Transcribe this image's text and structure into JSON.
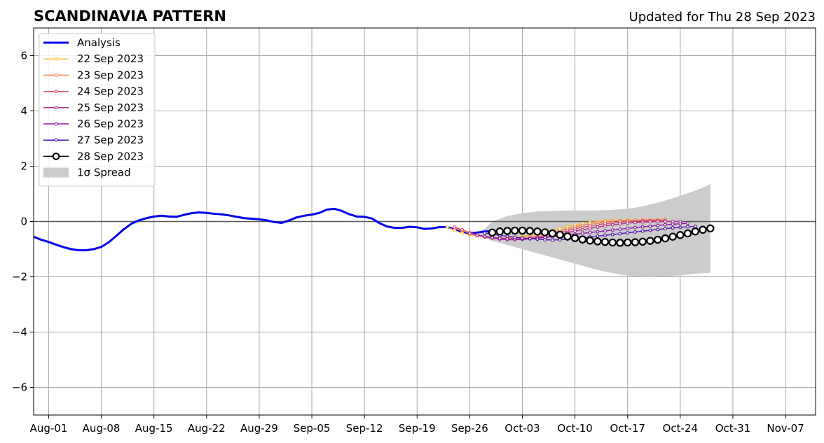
{
  "chart_data": {
    "type": "line",
    "title": "SCANDINAVIA PATTERN",
    "subtitle": "Updated for Thu 28 Sep 2023",
    "xlabel": "",
    "ylabel": "",
    "xlim": [
      "2023-07-30",
      "2023-11-11"
    ],
    "ylim": [
      -7,
      7
    ],
    "grid": true,
    "legend_position": "top-left",
    "x_ticks": [
      "2023-08-01",
      "2023-08-08",
      "2023-08-15",
      "2023-08-22",
      "2023-08-29",
      "2023-09-05",
      "2023-09-12",
      "2023-09-19",
      "2023-09-26",
      "2023-10-03",
      "2023-10-10",
      "2023-10-17",
      "2023-10-24",
      "2023-10-31",
      "2023-11-07"
    ],
    "x_tick_labels": [
      "Aug-01",
      "Aug-08",
      "Aug-15",
      "Aug-22",
      "Aug-29",
      "Sep-05",
      "Sep-12",
      "Sep-19",
      "Sep-26",
      "Oct-03",
      "Oct-10",
      "Oct-17",
      "Oct-24",
      "Oct-31",
      "Nov-07"
    ],
    "y_ticks": [
      -6,
      -4,
      -2,
      0,
      2,
      4,
      6
    ],
    "y_tick_labels": [
      "−6",
      "−4",
      "−2",
      "0",
      "2",
      "4",
      "6"
    ],
    "spread_label": "1σ Spread",
    "analysis": {
      "name": "Analysis",
      "color": "#0000ee",
      "x": [
        "2023-07-30",
        "2023-07-31",
        "2023-08-01",
        "2023-08-02",
        "2023-08-03",
        "2023-08-04",
        "2023-08-05",
        "2023-08-06",
        "2023-08-07",
        "2023-08-08",
        "2023-08-09",
        "2023-08-10",
        "2023-08-11",
        "2023-08-12",
        "2023-08-13",
        "2023-08-14",
        "2023-08-15",
        "2023-08-16",
        "2023-08-17",
        "2023-08-18",
        "2023-08-19",
        "2023-08-20",
        "2023-08-21",
        "2023-08-22",
        "2023-08-23",
        "2023-08-24",
        "2023-08-25",
        "2023-08-26",
        "2023-08-27",
        "2023-08-28",
        "2023-08-29",
        "2023-08-30",
        "2023-08-31",
        "2023-09-01",
        "2023-09-02",
        "2023-09-03",
        "2023-09-04",
        "2023-09-05",
        "2023-09-06",
        "2023-09-07",
        "2023-09-08",
        "2023-09-09",
        "2023-09-10",
        "2023-09-11",
        "2023-09-12",
        "2023-09-13",
        "2023-09-14",
        "2023-09-15",
        "2023-09-16",
        "2023-09-17",
        "2023-09-18",
        "2023-09-19",
        "2023-09-20",
        "2023-09-21",
        "2023-09-22",
        "2023-09-23",
        "2023-09-24",
        "2023-09-25",
        "2023-09-26",
        "2023-09-27",
        "2023-09-28",
        "2023-09-29"
      ],
      "values": [
        -0.55,
        -0.66,
        -0.74,
        -0.84,
        -0.93,
        -1.0,
        -1.04,
        -1.04,
        -1.0,
        -0.92,
        -0.75,
        -0.52,
        -0.28,
        -0.08,
        0.04,
        0.12,
        0.18,
        0.21,
        0.18,
        0.17,
        0.24,
        0.3,
        0.33,
        0.31,
        0.28,
        0.26,
        0.22,
        0.17,
        0.12,
        0.1,
        0.08,
        0.04,
        -0.02,
        -0.05,
        0.04,
        0.15,
        0.21,
        0.25,
        0.31,
        0.43,
        0.46,
        0.38,
        0.26,
        0.18,
        0.17,
        0.11,
        -0.06,
        -0.18,
        -0.23,
        -0.23,
        -0.19,
        -0.21,
        -0.27,
        -0.25,
        -0.2,
        -0.2,
        -0.28,
        -0.38,
        -0.43,
        -0.4,
        -0.36,
        -0.35
      ]
    },
    "series": [
      {
        "name": "22 Sep 2023",
        "color": "#f9b93c",
        "marker": "dot",
        "x_start": "2023-09-23",
        "values": [
          -0.2,
          -0.33,
          -0.42,
          -0.48,
          -0.52,
          -0.56,
          -0.6,
          -0.6,
          -0.6,
          -0.58,
          -0.54,
          -0.5,
          -0.45,
          -0.39,
          -0.32,
          -0.26,
          -0.19,
          -0.13,
          -0.07,
          -0.03,
          0.0,
          0.03,
          0.04,
          0.05,
          0.06,
          0.06,
          0.06,
          0.06,
          0.05
        ]
      },
      {
        "name": "23 Sep 2023",
        "color": "#f2844b",
        "marker": "dot",
        "x_start": "2023-09-24",
        "values": [
          -0.24,
          -0.34,
          -0.42,
          -0.48,
          -0.54,
          -0.57,
          -0.6,
          -0.6,
          -0.6,
          -0.58,
          -0.55,
          -0.51,
          -0.46,
          -0.4,
          -0.34,
          -0.27,
          -0.2,
          -0.14,
          -0.08,
          -0.04,
          -0.01,
          0.01,
          0.03,
          0.04,
          0.05,
          0.06,
          0.07,
          0.07,
          0.07
        ]
      },
      {
        "name": "24 Sep 2023",
        "color": "#dd4a68",
        "marker": "dot",
        "x_start": "2023-09-24",
        "values": [
          -0.2,
          -0.3,
          -0.4,
          -0.49,
          -0.56,
          -0.6,
          -0.63,
          -0.65,
          -0.65,
          -0.63,
          -0.6,
          -0.56,
          -0.51,
          -0.45,
          -0.39,
          -0.33,
          -0.27,
          -0.21,
          -0.16,
          -0.11,
          -0.08,
          -0.05,
          -0.02,
          0.0,
          0.01,
          0.02,
          0.03,
          0.03,
          0.03
        ]
      },
      {
        "name": "25 Sep 2023",
        "color": "#b22c8b",
        "marker": "dot",
        "x_start": "2023-09-26",
        "values": [
          -0.44,
          -0.5,
          -0.55,
          -0.6,
          -0.64,
          -0.66,
          -0.66,
          -0.65,
          -0.63,
          -0.6,
          -0.56,
          -0.51,
          -0.45,
          -0.4,
          -0.35,
          -0.3,
          -0.25,
          -0.2,
          -0.16,
          -0.12,
          -0.09,
          -0.06,
          -0.04,
          -0.02,
          -0.01,
          0.0,
          0.0,
          0.0,
          0.0
        ]
      },
      {
        "name": "26 Sep 2023",
        "color": "#8b13a8",
        "marker": "dot",
        "x_start": "2023-09-27",
        "values": [
          -0.5,
          -0.54,
          -0.58,
          -0.61,
          -0.63,
          -0.63,
          -0.63,
          -0.62,
          -0.6,
          -0.58,
          -0.55,
          -0.52,
          -0.49,
          -0.46,
          -0.43,
          -0.4,
          -0.37,
          -0.34,
          -0.31,
          -0.28,
          -0.25,
          -0.22,
          -0.19,
          -0.17,
          -0.14,
          -0.12,
          -0.1,
          -0.08,
          -0.07
        ]
      },
      {
        "name": "27 Sep 2023",
        "color": "#4f0da8",
        "marker": "dot",
        "x_start": "2023-09-28",
        "values": [
          -0.42,
          -0.46,
          -0.5,
          -0.54,
          -0.57,
          -0.6,
          -0.62,
          -0.64,
          -0.66,
          -0.67,
          -0.66,
          -0.64,
          -0.62,
          -0.59,
          -0.56,
          -0.53,
          -0.5,
          -0.47,
          -0.44,
          -0.41,
          -0.38,
          -0.35,
          -0.32,
          -0.29,
          -0.26,
          -0.23,
          -0.21,
          -0.19,
          -0.18
        ]
      },
      {
        "name": "28 Sep 2023",
        "color": "#000000",
        "marker": "open-circle",
        "x_start": "2023-09-29",
        "values": [
          -0.4,
          -0.36,
          -0.34,
          -0.33,
          -0.33,
          -0.34,
          -0.36,
          -0.39,
          -0.43,
          -0.48,
          -0.54,
          -0.6,
          -0.65,
          -0.69,
          -0.72,
          -0.74,
          -0.76,
          -0.77,
          -0.76,
          -0.75,
          -0.73,
          -0.7,
          -0.66,
          -0.61,
          -0.55,
          -0.49,
          -0.43,
          -0.36,
          -0.3,
          -0.25
        ]
      }
    ],
    "spread": {
      "color": "#cccccc",
      "x": [
        "2023-09-27",
        "2023-09-28",
        "2023-09-29",
        "2023-10-01",
        "2023-10-03",
        "2023-10-05",
        "2023-10-07",
        "2023-10-09",
        "2023-10-11",
        "2023-10-13",
        "2023-10-15",
        "2023-10-17",
        "2023-10-19",
        "2023-10-21",
        "2023-10-23",
        "2023-10-25",
        "2023-10-27",
        "2023-10-28"
      ],
      "upper": [
        -0.45,
        -0.25,
        0.0,
        0.2,
        0.3,
        0.36,
        0.38,
        0.4,
        0.4,
        0.4,
        0.42,
        0.46,
        0.55,
        0.68,
        0.84,
        1.02,
        1.22,
        1.36
      ],
      "lower": [
        -0.5,
        -0.6,
        -0.7,
        -0.85,
        -1.0,
        -1.15,
        -1.3,
        -1.45,
        -1.6,
        -1.75,
        -1.87,
        -1.96,
        -2.0,
        -2.0,
        -1.97,
        -1.92,
        -1.87,
        -1.85
      ]
    }
  }
}
